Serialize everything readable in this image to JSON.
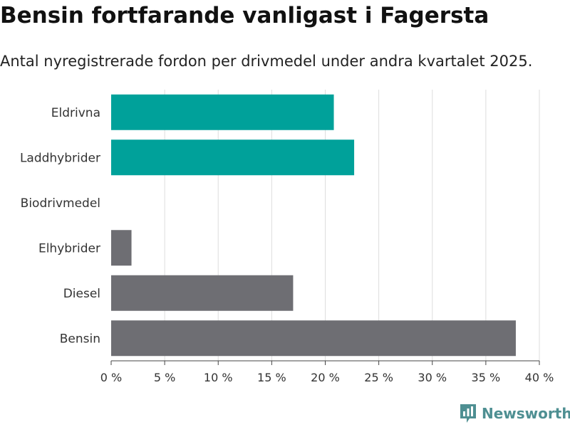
{
  "header": {
    "title": "Bensin fortfarande vanligast i Fagersta",
    "subtitle": "Antal nyregistrerade fordon per drivmedel under andra kvartalet 2025."
  },
  "chart_data": {
    "type": "bar",
    "orientation": "horizontal",
    "categories": [
      "Eldrivna",
      "Laddhybrider",
      "Biodrivmedel",
      "Elhybrider",
      "Diesel",
      "Bensin"
    ],
    "values": [
      20.8,
      22.7,
      0,
      1.9,
      17.0,
      37.8
    ],
    "bar_colors": [
      "#00a19a",
      "#00a19a",
      "#6e6e73",
      "#6e6e73",
      "#6e6e73",
      "#6e6e73"
    ],
    "x_ticks": [
      "0 %",
      "5 %",
      "10 %",
      "15 %",
      "20 %",
      "25 %",
      "30 %",
      "35 %",
      "40 %"
    ],
    "x_tick_values": [
      0,
      5,
      10,
      15,
      20,
      25,
      30,
      35,
      40
    ],
    "xlim": [
      0,
      40
    ],
    "grid": true,
    "legend": "none"
  },
  "brand": {
    "name": "Newsworthy",
    "logo_icon": "bar-chart-logo-icon",
    "color": "#4e8f92"
  }
}
